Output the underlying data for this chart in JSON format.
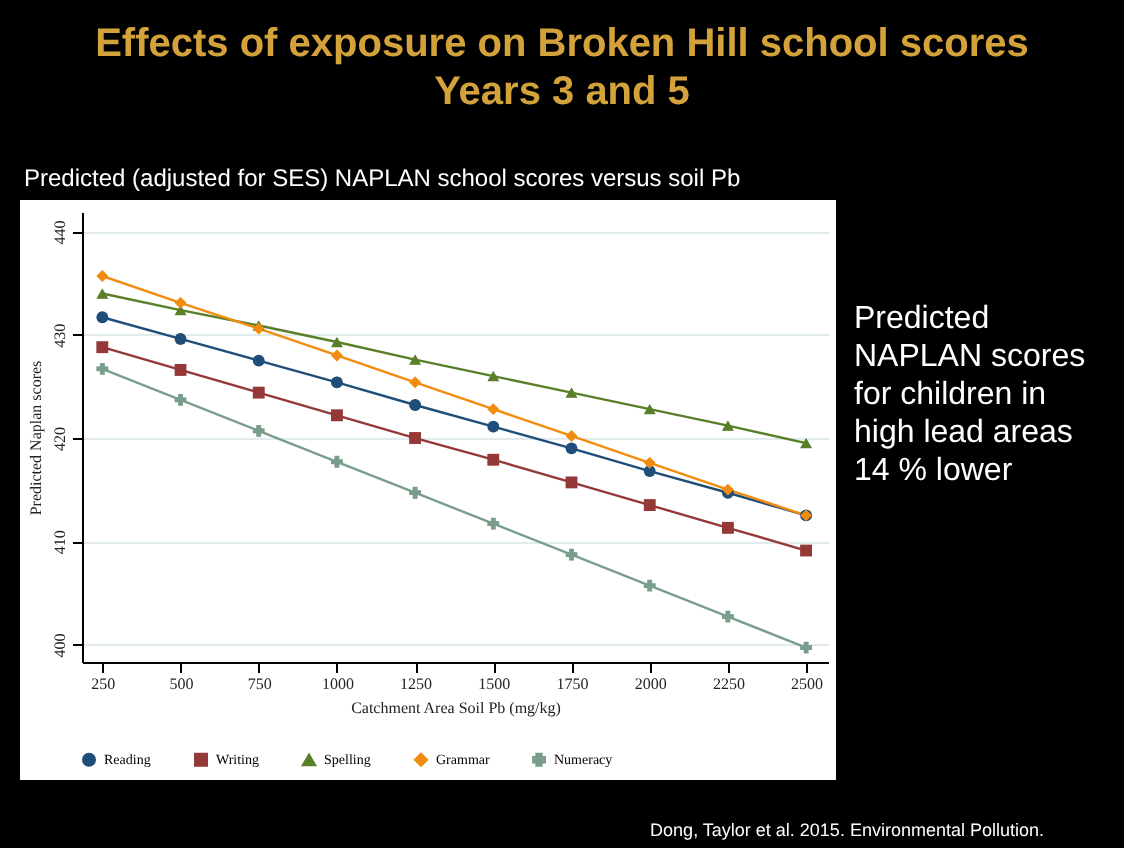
{
  "chart_data": {
    "type": "line",
    "title": "Effects of exposure on Broken Hill school scores\nYears 3 and 5",
    "subtitle": "Predicted (adjusted for SES) NAPLAN school scores versus soil Pb",
    "xlabel": "Catchment Area Soil Pb (mg/kg)",
    "ylabel": "Predicted Naplan scores",
    "x": [
      250,
      500,
      750,
      1000,
      1250,
      1500,
      1750,
      2000,
      2250,
      2500
    ],
    "series": [
      {
        "name": "Reading",
        "color": "#1f4e79",
        "marker": "circle",
        "values": [
          431.7,
          429.6,
          427.5,
          425.4,
          423.2,
          421.1,
          419.0,
          416.8,
          414.7,
          412.5
        ]
      },
      {
        "name": "Writing",
        "color": "#943838",
        "marker": "square",
        "values": [
          428.8,
          426.6,
          424.4,
          422.2,
          420.0,
          417.9,
          415.7,
          413.5,
          411.3,
          409.1
        ]
      },
      {
        "name": "Spelling",
        "color": "#5a7f2a",
        "marker": "triangle",
        "values": [
          434.0,
          432.4,
          430.9,
          429.3,
          427.6,
          426.0,
          424.4,
          422.8,
          421.2,
          419.5
        ]
      },
      {
        "name": "Grammar",
        "color": "#f28c0f",
        "marker": "diamond",
        "values": [
          435.7,
          433.1,
          430.6,
          428.0,
          425.4,
          422.8,
          420.2,
          417.6,
          415.0,
          412.5
        ]
      },
      {
        "name": "Numeracy",
        "color": "#7a9e8c",
        "marker": "cross",
        "values": [
          426.7,
          423.7,
          420.7,
          417.7,
          414.7,
          411.7,
          408.7,
          405.7,
          402.7,
          399.7
        ]
      }
    ],
    "xlim": [
      185,
      2570
    ],
    "xticks": [
      250,
      500,
      750,
      1000,
      1250,
      1500,
      1750,
      2000,
      2250,
      2500
    ],
    "ylim": [
      398.3,
      441.9
    ],
    "yticks": [
      400,
      410,
      420,
      430,
      440
    ],
    "grid": "y",
    "legend": "bottom",
    "annotations": [
      "Predicted NAPLAN scores for children in high lead areas 14 % lower",
      "Dong, Taylor et al. 2015. Environmental Pollution."
    ]
  }
}
